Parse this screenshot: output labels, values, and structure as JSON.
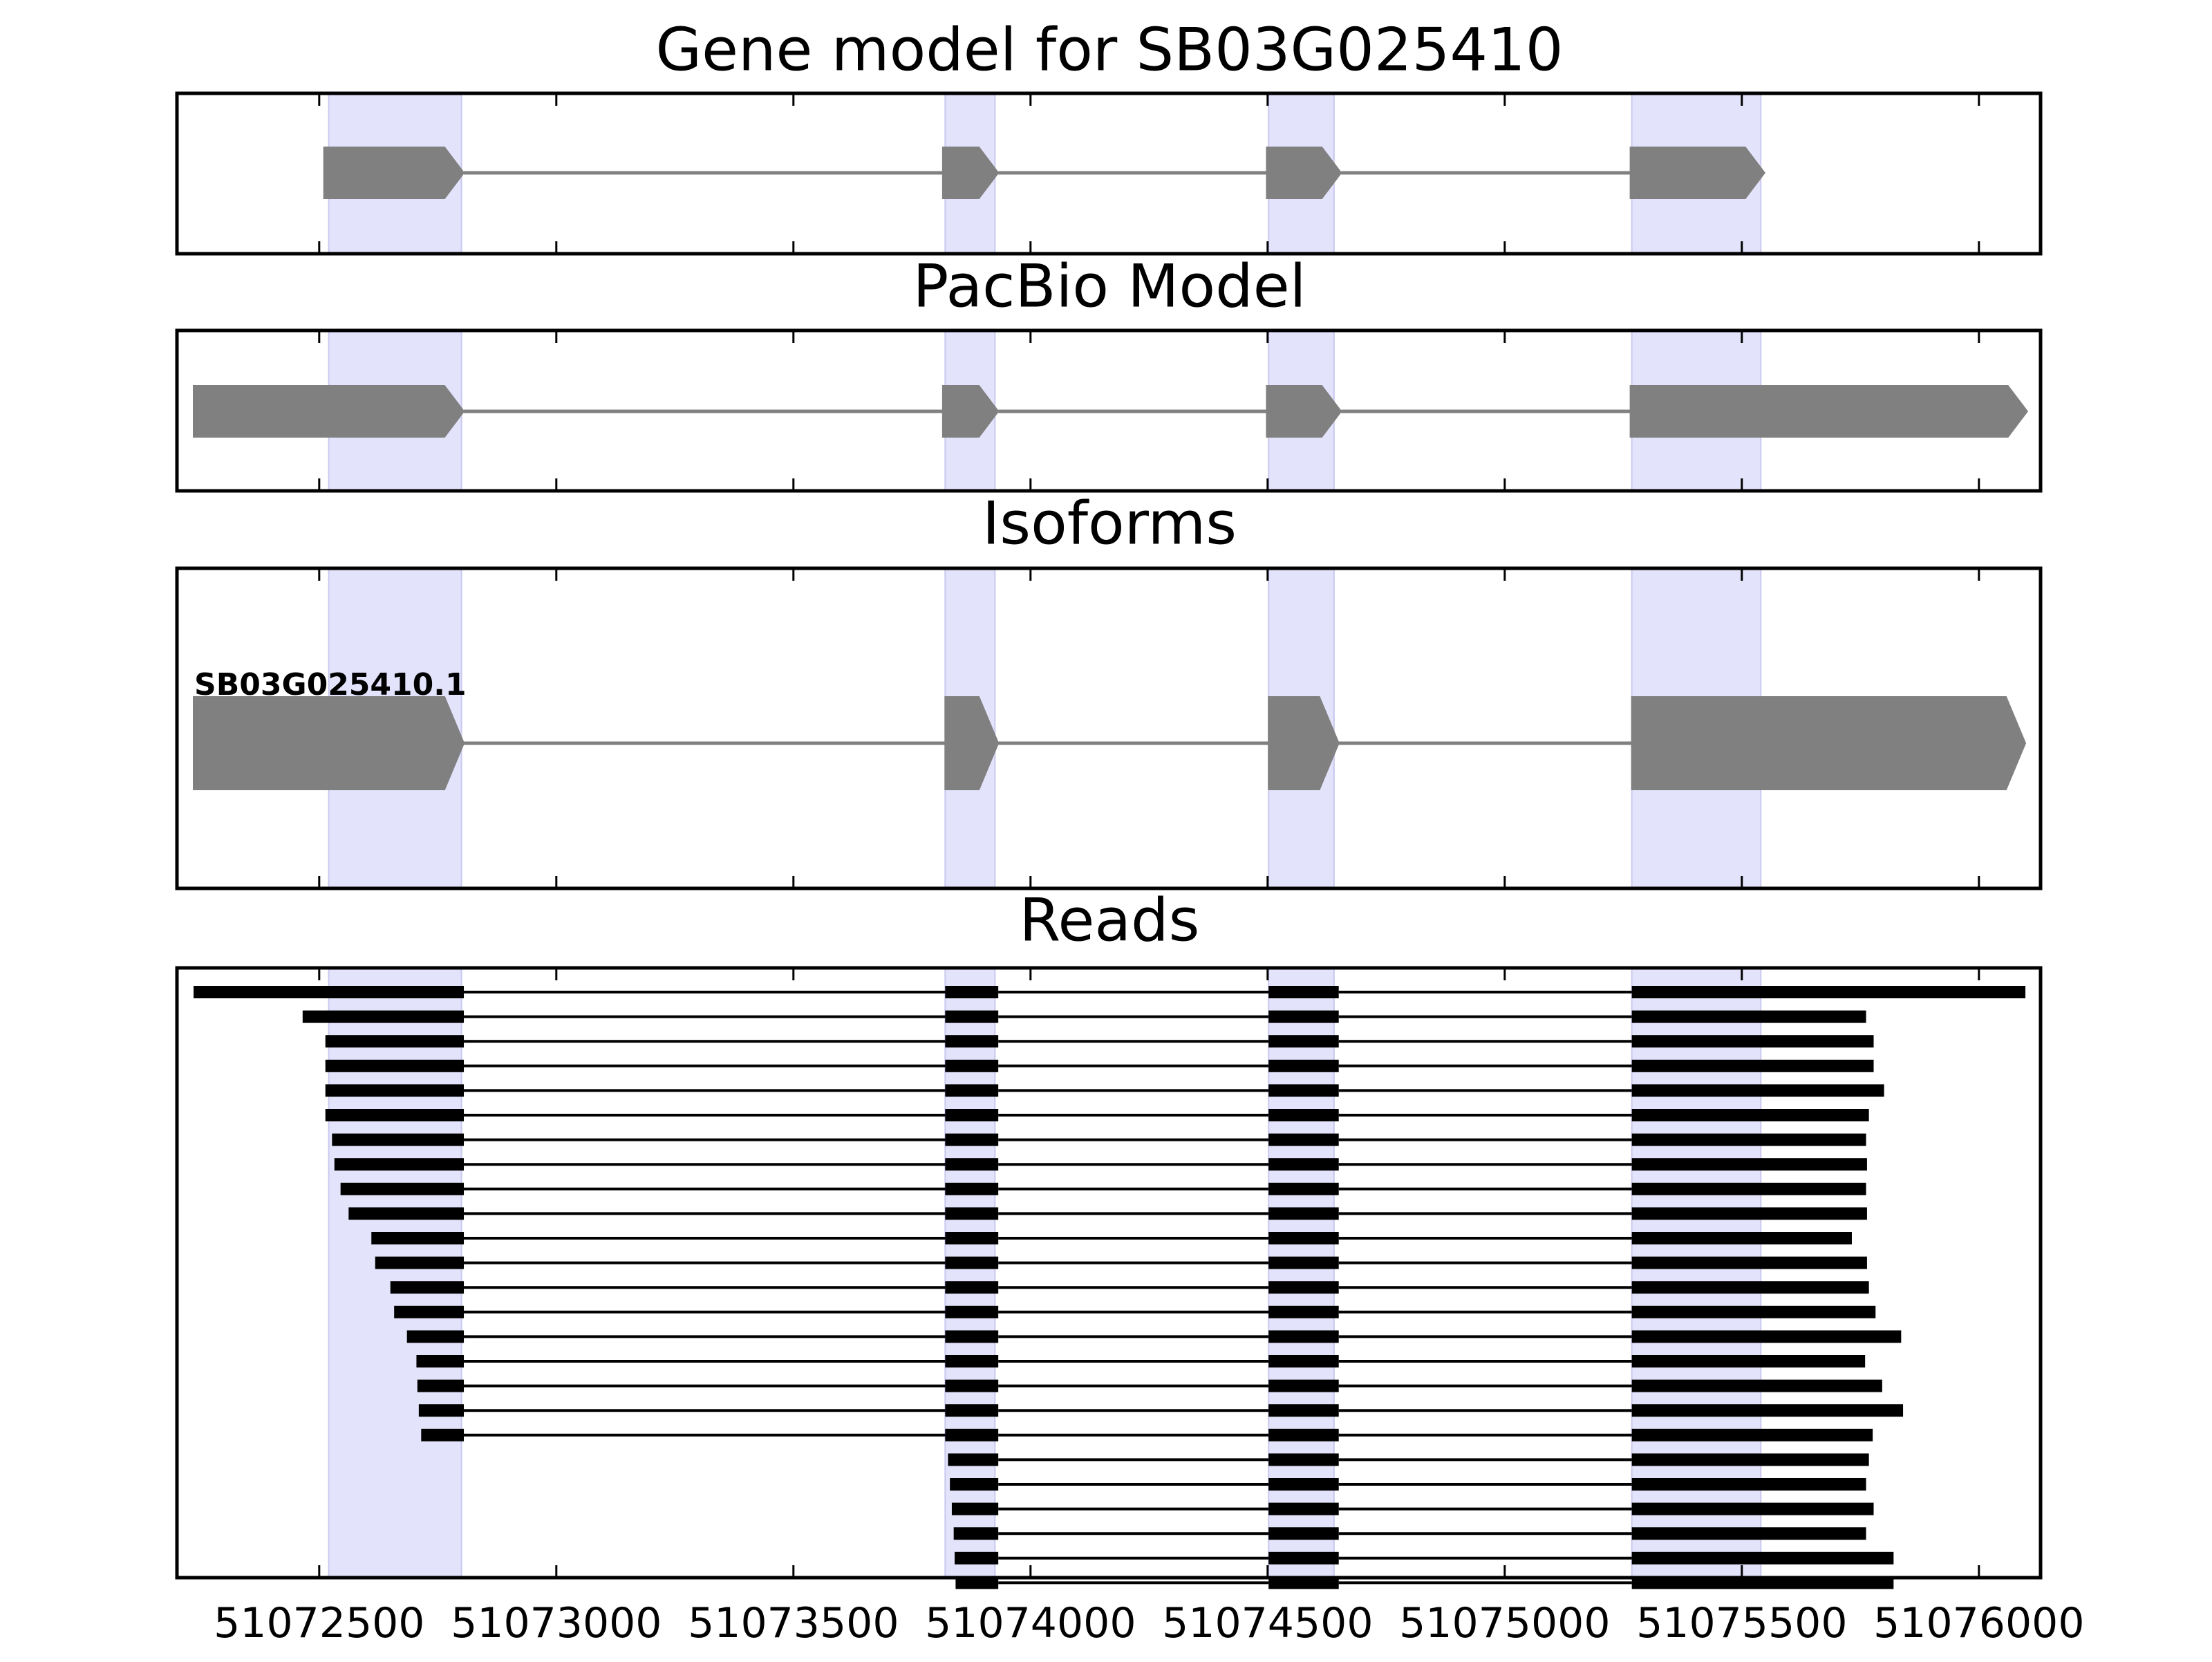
{
  "chart_data": {
    "type": "gene-model-tracks",
    "xlim": [
      51072200,
      51076130
    ],
    "xticks": [
      51072500,
      51073000,
      51073500,
      51074000,
      51074500,
      51075000,
      51075500,
      51076000
    ],
    "xtick_labels": [
      "51072500",
      "51073000",
      "51073500",
      "51074000",
      "51074500",
      "51075000",
      "51075500",
      "51076000"
    ],
    "highlight_regions": [
      [
        51072520,
        51072800
      ],
      [
        51073820,
        51073925
      ],
      [
        51074502,
        51074640
      ],
      [
        51075268,
        51075540
      ]
    ],
    "colors": {
      "highlight": "#e3e3fb",
      "exon": "#808080",
      "intron": "#808080",
      "read": "#000000",
      "frame": "#000000"
    },
    "panels": {
      "gene_model": {
        "title": "Gene model for SB03G025410",
        "exons": [
          [
            51072510,
            51072805
          ],
          [
            51073815,
            51073932
          ],
          [
            51074498,
            51074655
          ],
          [
            51075265,
            51075548
          ]
        ]
      },
      "pacbio_model": {
        "title": "PacBio Model",
        "exons": [
          [
            51072235,
            51072805
          ],
          [
            51073815,
            51073932
          ],
          [
            51074498,
            51074655
          ],
          [
            51075265,
            51076102
          ]
        ]
      },
      "isoforms": {
        "title": "Isoforms",
        "isoform_label": "SB03G025410.1",
        "exons": [
          [
            51072235,
            51072805
          ],
          [
            51073820,
            51073932
          ],
          [
            51074502,
            51074650
          ],
          [
            51075268,
            51076098
          ]
        ]
      },
      "reads": {
        "title": "Reads",
        "reads": [
          {
            "start": 51072230,
            "end": 51076100
          },
          {
            "start": 51072465,
            "end": 51075762
          },
          {
            "start": 51072513,
            "end": 51075778
          },
          {
            "start": 51072513,
            "end": 51075778
          },
          {
            "start": 51072513,
            "end": 51075800
          },
          {
            "start": 51072513,
            "end": 51075768
          },
          {
            "start": 51072527,
            "end": 51075762
          },
          {
            "start": 51072532,
            "end": 51075764
          },
          {
            "start": 51072545,
            "end": 51075762
          },
          {
            "start": 51072562,
            "end": 51075764
          },
          {
            "start": 51072610,
            "end": 51075732
          },
          {
            "start": 51072618,
            "end": 51075764
          },
          {
            "start": 51072650,
            "end": 51075768
          },
          {
            "start": 51072658,
            "end": 51075782
          },
          {
            "start": 51072685,
            "end": 51075836
          },
          {
            "start": 51072705,
            "end": 51075760
          },
          {
            "start": 51072707,
            "end": 51075796
          },
          {
            "start": 51072710,
            "end": 51075840
          },
          {
            "start": 51072715,
            "end": 51075776
          },
          {
            "start": 51073826,
            "end": 51075768
          },
          {
            "start": 51073830,
            "end": 51075762
          },
          {
            "start": 51073834,
            "end": 51075778
          },
          {
            "start": 51073838,
            "end": 51075762
          },
          {
            "start": 51073840,
            "end": 51075820
          },
          {
            "start": 51073842,
            "end": 51075820
          }
        ]
      }
    }
  }
}
